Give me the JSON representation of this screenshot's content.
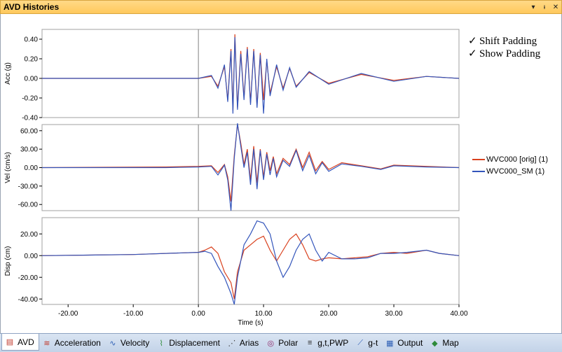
{
  "window": {
    "title": "AVD Histories",
    "dropdown_glyph": "▾",
    "pin_glyph": "ᵼ",
    "close_glyph": "✕"
  },
  "options": {
    "check_glyph": "✓",
    "shift_padding": "Shift Padding",
    "show_padding": "Show Padding"
  },
  "legend": [
    {
      "label": "WVC000 [orig]  (1)",
      "color": "#d9411e"
    },
    {
      "label": "WVC000_SM (1)",
      "color": "#3355bb"
    }
  ],
  "tabs": [
    {
      "label": "AVD",
      "icon": "avd-icon",
      "glyph": "▤",
      "active": true
    },
    {
      "label": "Acceleration",
      "icon": "acceleration-icon",
      "glyph": "≋"
    },
    {
      "label": "Velocity",
      "icon": "velocity-icon",
      "glyph": "∿"
    },
    {
      "label": "Displacement",
      "icon": "displacement-icon",
      "glyph": "⌇"
    },
    {
      "label": "Arias",
      "icon": "arias-icon",
      "glyph": "⋰"
    },
    {
      "label": "Polar",
      "icon": "polar-icon",
      "glyph": "◎"
    },
    {
      "label": "g,t,PWP",
      "icon": "gtpwp-icon",
      "glyph": "≡"
    },
    {
      "label": "g-t",
      "icon": "g-t-icon",
      "glyph": "⟋"
    },
    {
      "label": "Output",
      "icon": "output-icon",
      "glyph": "▦"
    },
    {
      "label": "Map",
      "icon": "map-icon",
      "glyph": "◆"
    }
  ],
  "colors": {
    "orig": "#d9411e",
    "smoothed": "#3355bb",
    "zero_line": "#808080"
  },
  "chart_data": [
    {
      "type": "line",
      "ylabel": "Acc (g)",
      "xlim": [
        -24,
        40
      ],
      "ylim": [
        -0.4,
        0.5
      ],
      "yticks": [
        0.4,
        0.2,
        0.0,
        -0.2,
        -0.4
      ],
      "ytick_labels": [
        "0.40",
        "0.20",
        "0.00",
        "-0.20",
        "-0.40"
      ],
      "series": [
        {
          "name": "WVC000 [orig]  (1)",
          "x": [
            -24,
            0,
            2,
            3,
            4,
            4.5,
            5,
            5.3,
            5.6,
            6,
            6.5,
            7,
            7.5,
            8,
            8.5,
            9,
            9.5,
            10,
            10.5,
            11,
            12,
            13,
            14,
            15,
            17,
            20,
            25,
            30,
            35,
            40
          ],
          "y": [
            0,
            0,
            0.02,
            -0.08,
            0.12,
            -0.22,
            0.3,
            -0.33,
            0.45,
            -0.3,
            0.28,
            -0.2,
            0.32,
            -0.25,
            0.3,
            -0.28,
            0.26,
            -0.22,
            0.18,
            -0.15,
            0.12,
            -0.1,
            0.1,
            -0.08,
            0.06,
            -0.05,
            0.04,
            -0.02,
            0.02,
            0
          ]
        },
        {
          "name": "WVC000_SM (1)",
          "x": [
            -24,
            0,
            2,
            3,
            4,
            4.5,
            5,
            5.3,
            5.6,
            6,
            6.5,
            7,
            7.5,
            8,
            8.5,
            9,
            9.5,
            10,
            10.5,
            11,
            12,
            13,
            14,
            15,
            17,
            20,
            25,
            30,
            35,
            40
          ],
          "y": [
            0,
            0,
            0.03,
            -0.1,
            0.14,
            -0.24,
            0.28,
            -0.36,
            0.42,
            -0.32,
            0.25,
            -0.22,
            0.3,
            -0.27,
            0.28,
            -0.3,
            0.24,
            -0.36,
            0.2,
            -0.18,
            0.14,
            -0.12,
            0.11,
            -0.09,
            0.07,
            -0.06,
            0.05,
            -0.03,
            0.02,
            0
          ]
        }
      ]
    },
    {
      "type": "line",
      "ylabel": "Vel (cm/s)",
      "xlim": [
        -24,
        40
      ],
      "ylim": [
        -70,
        70
      ],
      "yticks": [
        60,
        30,
        0,
        -30,
        -60
      ],
      "ytick_labels": [
        "60.00",
        "30.00",
        "0.00",
        "-30.00",
        "-60.00"
      ],
      "series": [
        {
          "name": "WVC000 [orig]  (1)",
          "x": [
            -24,
            -5,
            0,
            2,
            3,
            4,
            4.5,
            5,
            5.5,
            6,
            6.5,
            7,
            7.5,
            8,
            8.5,
            9,
            9.5,
            10,
            10.5,
            11,
            11.5,
            12,
            13,
            14,
            15,
            16,
            17,
            18,
            19,
            20,
            22,
            25,
            28,
            30,
            35,
            40
          ],
          "y": [
            0,
            1,
            2,
            3,
            -8,
            5,
            -15,
            -55,
            20,
            70,
            40,
            5,
            30,
            -20,
            35,
            -25,
            30,
            -15,
            25,
            -5,
            18,
            -10,
            15,
            5,
            30,
            0,
            25,
            -5,
            10,
            -3,
            8,
            3,
            -2,
            4,
            2,
            0
          ]
        },
        {
          "name": "WVC000_SM (1)",
          "x": [
            -24,
            -5,
            0,
            2,
            3,
            4,
            4.5,
            5,
            5.5,
            6,
            6.5,
            7,
            7.5,
            8,
            8.5,
            9,
            9.5,
            10,
            10.5,
            11,
            11.5,
            12,
            13,
            14,
            15,
            16,
            17,
            18,
            19,
            20,
            22,
            25,
            28,
            30,
            35,
            40
          ],
          "y": [
            0,
            0,
            1,
            2,
            -12,
            4,
            -20,
            -70,
            15,
            72,
            35,
            0,
            25,
            -28,
            30,
            -35,
            28,
            -20,
            22,
            -12,
            15,
            -15,
            12,
            2,
            28,
            -5,
            20,
            -10,
            8,
            -6,
            6,
            2,
            -3,
            3,
            1,
            0
          ]
        }
      ]
    },
    {
      "type": "line",
      "ylabel": "Disp (cm)",
      "xlabel": "Time (s)",
      "xlim": [
        -24,
        40
      ],
      "ylim": [
        -45,
        35
      ],
      "yticks": [
        20,
        0,
        -20,
        -40
      ],
      "ytick_labels": [
        "20.00",
        "0.00",
        "-20.00",
        "-40.00"
      ],
      "xticks": [
        -20,
        -10,
        0,
        10,
        20,
        30,
        40
      ],
      "xtick_labels": [
        "-20.00",
        "-10.00",
        "0.00",
        "10.00",
        "20.00",
        "30.00",
        "40.00"
      ],
      "series": [
        {
          "name": "WVC000 [orig]  (1)",
          "x": [
            -24,
            -10,
            0,
            1,
            2,
            3,
            4,
            5,
            5.5,
            6,
            7,
            8,
            9,
            10,
            11,
            12,
            13,
            14,
            15,
            16,
            17,
            18,
            19,
            20,
            22,
            24,
            26,
            28,
            30,
            32,
            35,
            37,
            40
          ],
          "y": [
            0,
            1,
            3,
            5,
            8,
            2,
            -15,
            -25,
            -40,
            -15,
            5,
            10,
            15,
            18,
            5,
            -5,
            5,
            15,
            20,
            10,
            -3,
            -5,
            -3,
            -2,
            -3,
            -2,
            -1,
            2,
            3,
            2,
            5,
            2,
            0
          ]
        },
        {
          "name": "WVC000_SM (1)",
          "x": [
            -24,
            -10,
            0,
            1,
            2,
            3,
            4,
            5,
            5.5,
            6,
            7,
            8,
            9,
            10,
            11,
            12,
            13,
            14,
            15,
            16,
            17,
            18,
            19,
            20,
            22,
            24,
            26,
            28,
            30,
            32,
            35,
            37,
            40
          ],
          "y": [
            0,
            1,
            3,
            4,
            2,
            -10,
            -20,
            -35,
            -45,
            -20,
            10,
            20,
            32,
            30,
            20,
            -5,
            -20,
            -10,
            5,
            15,
            20,
            5,
            -5,
            3,
            -3,
            -3,
            -2,
            2,
            2,
            3,
            5,
            2,
            0
          ]
        }
      ]
    }
  ]
}
